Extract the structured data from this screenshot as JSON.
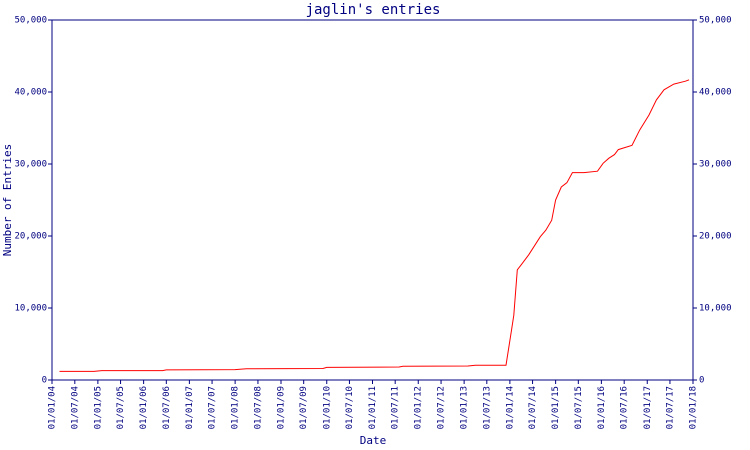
{
  "chart_data": {
    "type": "line",
    "title": "jaglin's entries",
    "x_label": "Date",
    "y_label": "Number of Entries",
    "xlim": [
      "01/01/04",
      "01/01/18"
    ],
    "xticks": [
      "01/01/04",
      "01/07/04",
      "01/01/05",
      "01/07/05",
      "01/01/06",
      "01/07/06",
      "01/01/07",
      "01/07/07",
      "01/01/08",
      "01/07/08",
      "01/01/09",
      "01/07/09",
      "01/01/10",
      "01/07/10",
      "01/01/11",
      "01/07/11",
      "01/01/12",
      "01/07/12",
      "01/01/13",
      "01/07/13",
      "01/01/14",
      "01/07/14",
      "01/01/15",
      "01/07/15",
      "01/01/16",
      "01/07/16",
      "01/01/17",
      "01/07/17",
      "01/01/18"
    ],
    "ylim": [
      0,
      50000
    ],
    "yticks": [
      0,
      {
        "value": 10000,
        "label": "10,000"
      },
      {
        "value": 20000,
        "label": "20,000"
      },
      {
        "value": 30000,
        "label": "30,000"
      },
      {
        "value": 40000,
        "label": "40,000"
      },
      {
        "value": 50000,
        "label": "50,000"
      }
    ],
    "grid": false,
    "axis_color": "#000080",
    "series": [
      {
        "color": "#ff0000",
        "x": [
          "01/03/04",
          "01/12/04",
          "01/02/05",
          "01/06/06",
          "01/07/06",
          "01/01/08",
          "01/04/08",
          "01/12/09",
          "01/01/10",
          "01/08/11",
          "01/09/11",
          "01/02/13",
          "01/04/13",
          "01/12/13",
          "15/01/14",
          "01/02/14",
          "01/03/14",
          "01/04/14",
          "01/06/14",
          "01/09/14",
          "15/10/14",
          "01/12/14",
          "01/01/15",
          "15/02/15",
          "01/04/15",
          "15/05/15",
          "15/08/15",
          "01/12/15",
          "15/01/16",
          "01/03/16",
          "15/04/16",
          "15/05/16",
          "01/09/16",
          "01/11/16",
          "15/01/17",
          "15/03/17",
          "15/05/17",
          "01/08/17",
          "01/11/17",
          "01/12/17"
        ],
        "values": [
          1200,
          1200,
          1300,
          1300,
          1400,
          1450,
          1550,
          1600,
          1750,
          1800,
          1900,
          1950,
          2050,
          2050,
          7000,
          9000,
          15300,
          16000,
          17400,
          19900,
          20800,
          22200,
          25000,
          26800,
          27400,
          28800,
          28800,
          29000,
          30100,
          30800,
          31300,
          32000,
          32600,
          34700,
          36800,
          38900,
          40300,
          41100,
          41500,
          41700
        ]
      }
    ]
  }
}
